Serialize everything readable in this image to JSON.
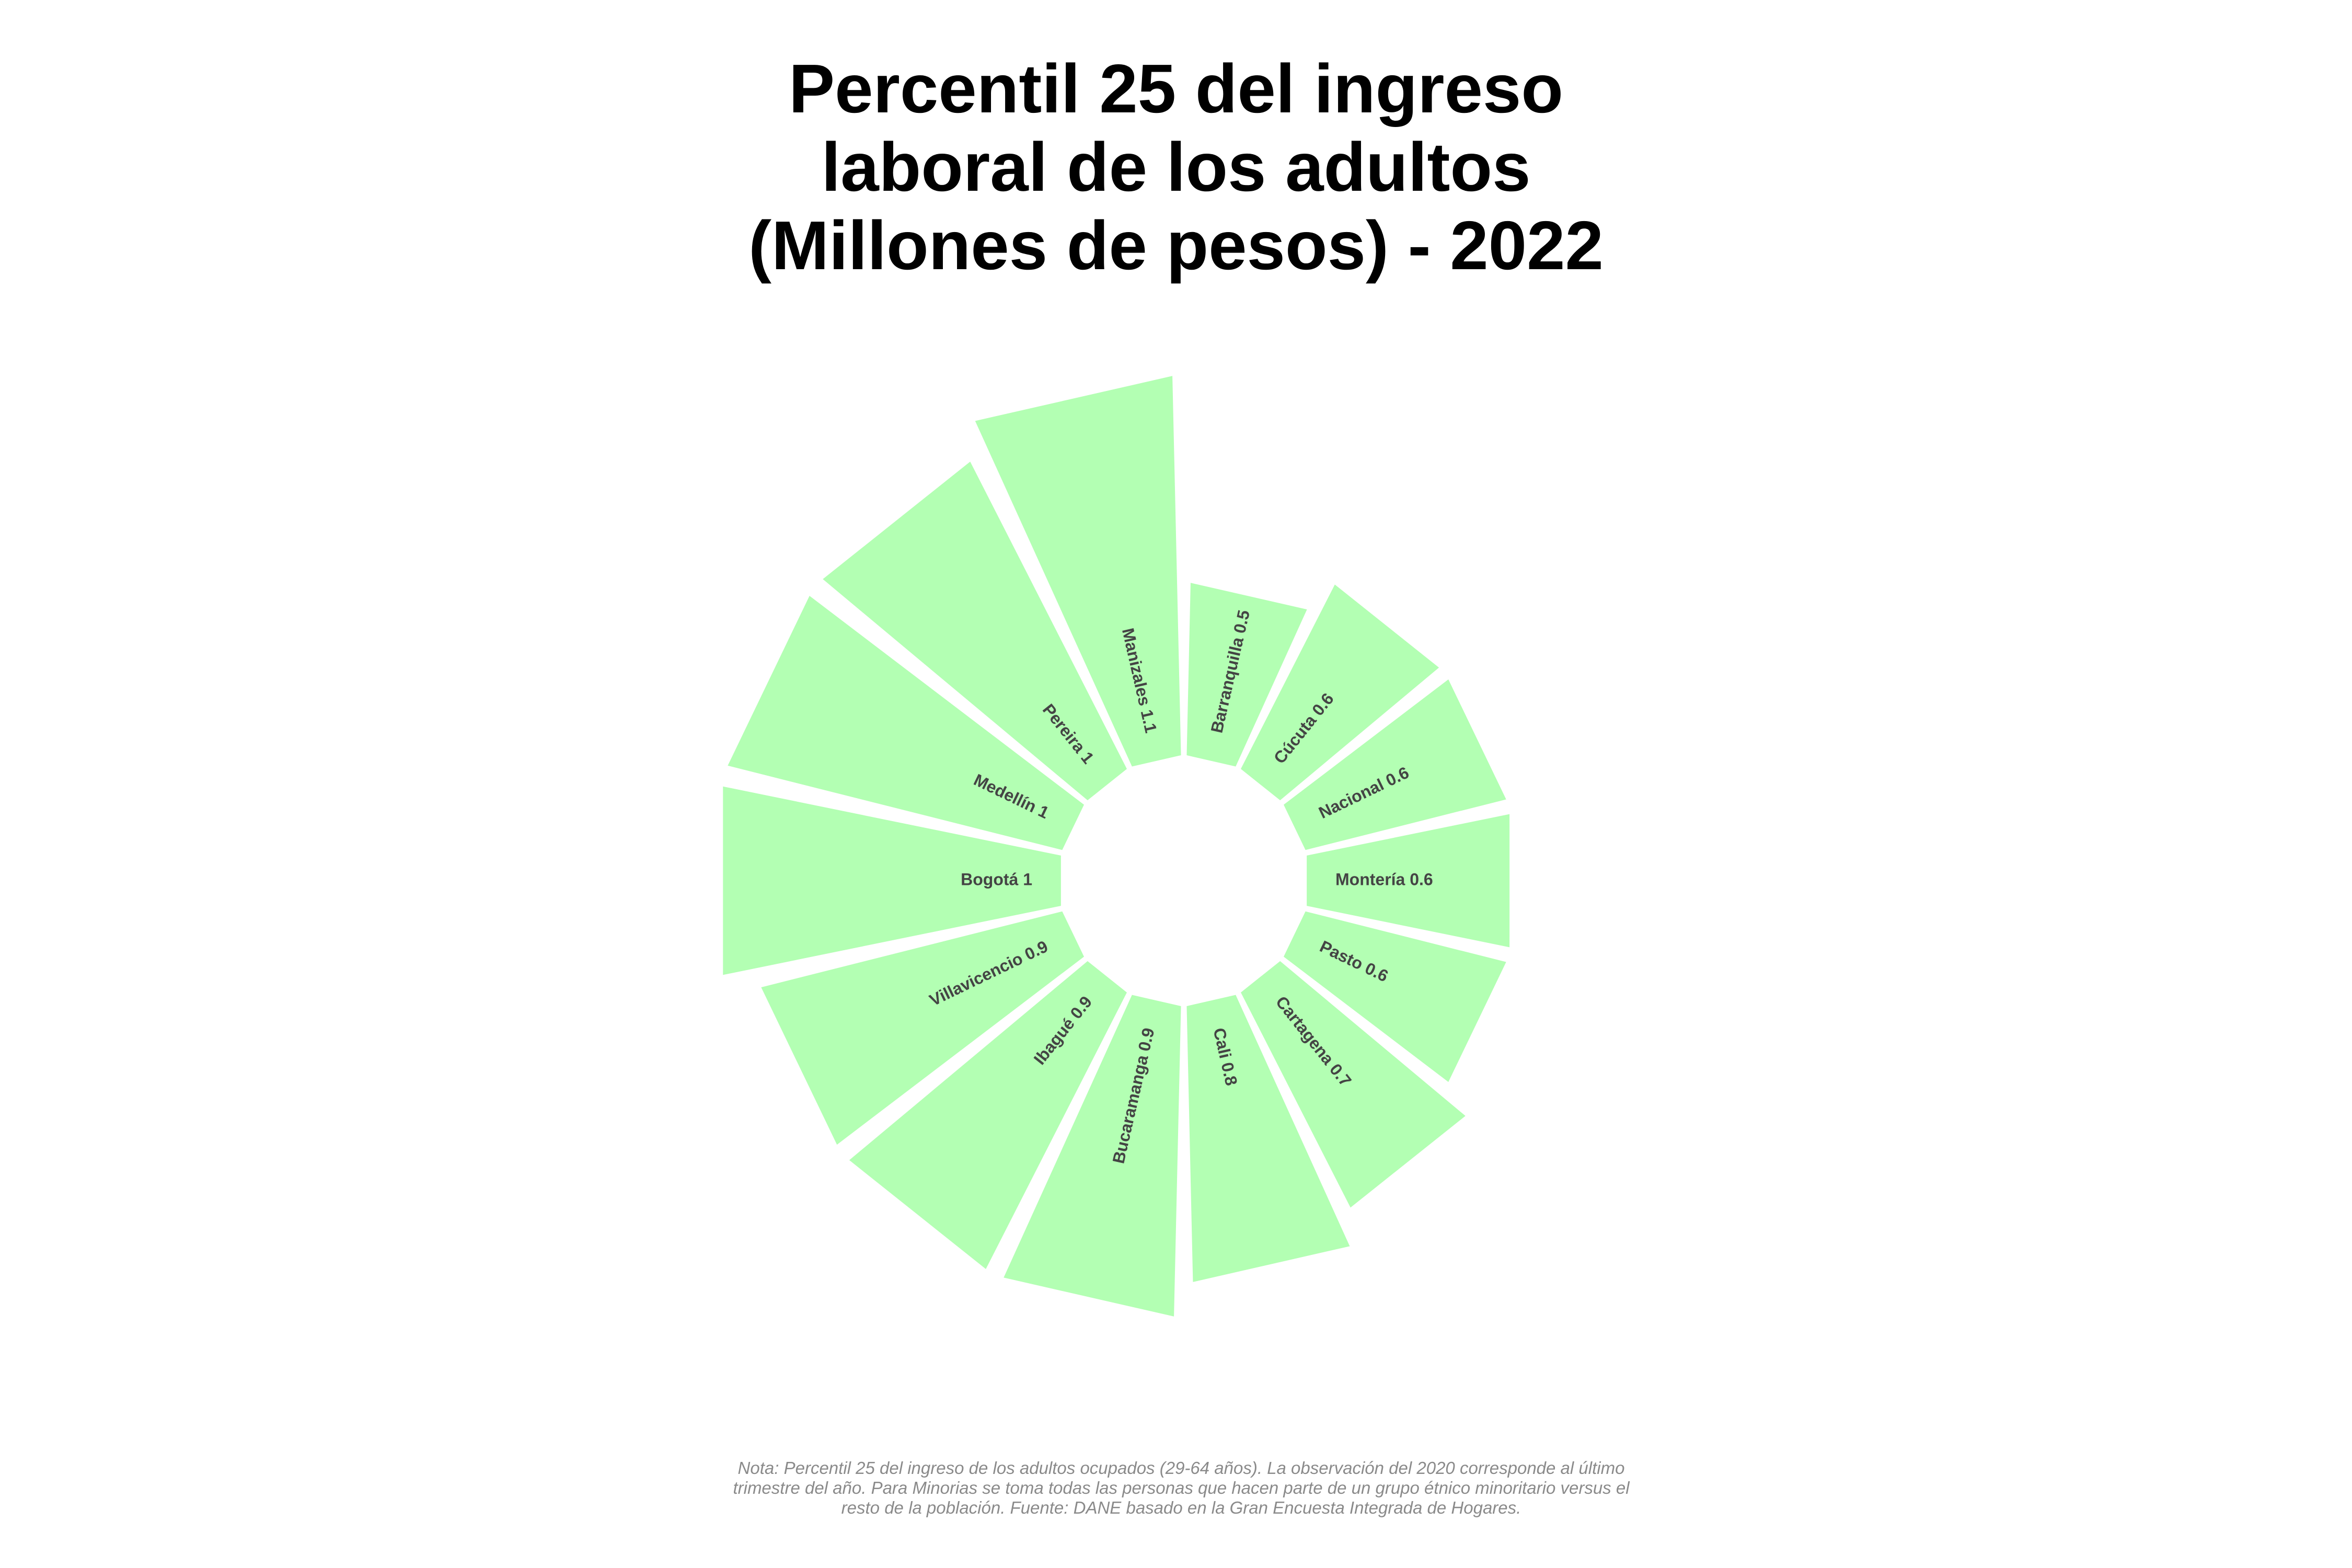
{
  "chart_data": {
    "type": "bar",
    "polar": true,
    "title": "Percentil 25 del ingreso laboral de los adultos (Millones de pesos) - 2022",
    "title_lines": [
      "Percentil 25 del ingreso",
      "laboral de los adultos",
      "(Millones de pesos) - 2022"
    ],
    "categories": [
      "Barranquilla",
      "Cúcuta",
      "Nacional",
      "Montería",
      "Pasto",
      "Cartagena",
      "Cali",
      "Bucaramanga",
      "Ibagué",
      "Villavicencio",
      "Bogotá",
      "Medellín",
      "Pereira",
      "Manizales"
    ],
    "values": [
      0.5,
      0.6,
      0.6,
      0.6,
      0.6,
      0.7,
      0.8,
      0.9,
      0.9,
      0.9,
      1,
      1,
      1,
      1.1
    ],
    "labels": [
      "Barranquilla 0.5",
      "Cúcuta 0.6",
      "Nacional 0.6",
      "Montería 0.6",
      "Pasto 0.6",
      "Cartagena 0.7",
      "Cali 0.8",
      "Bucaramanga 0.9",
      "Ibagué 0.9",
      "Villavicencio 0.9",
      "Bogotá 1",
      "Medellín 1",
      "Pereira 1",
      "Manizales 1.1"
    ],
    "colors": {
      "bar": "#b3ffb3",
      "label": "#444444",
      "title": "#000000",
      "note": "#8a8a8a"
    },
    "grid": false,
    "legend": "none",
    "note": "Nota: Percentil 25 del ingreso de los adultos ocupados (29-64 años). La observación del 2020 corresponde al último trimestre del año. Para Minorias se toma todas las personas que hacen parte de un grupo étnico minoritario versus el resto de la población. Fuente: DANE basado en la Gran Encuesta Integrada de Hogares."
  }
}
